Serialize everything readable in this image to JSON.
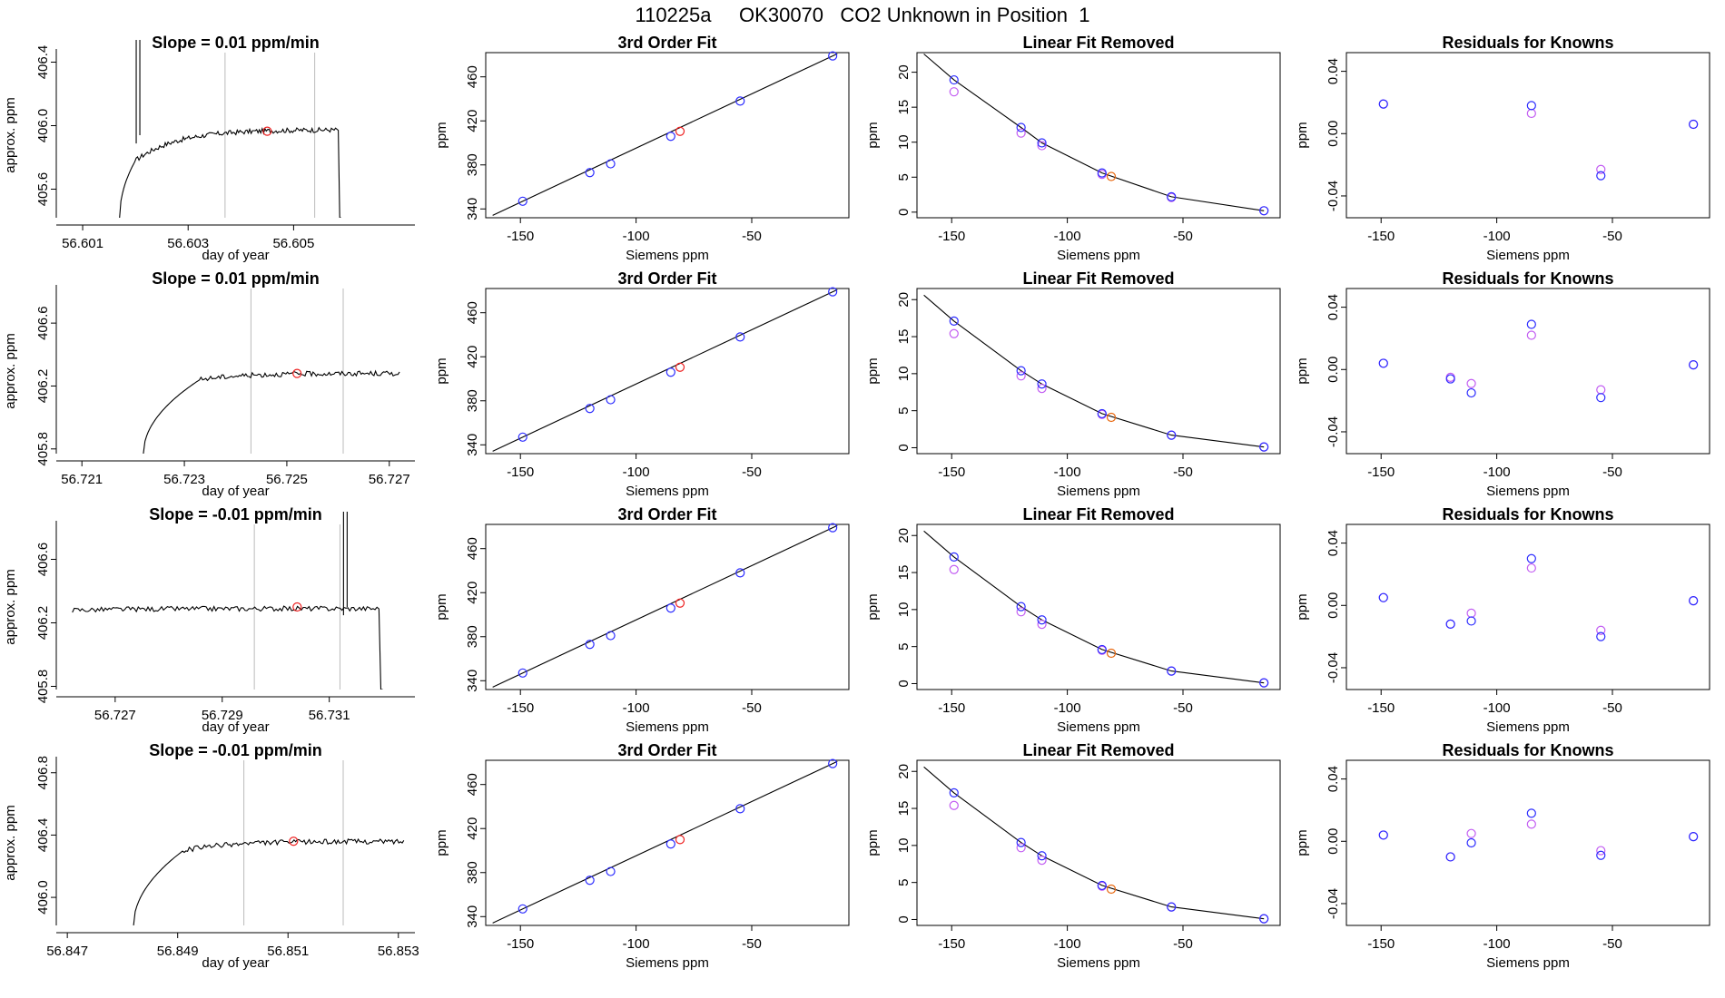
{
  "title": "110225a     OK30070   CO2 Unknown in Position  1",
  "colors": {
    "blue": "#2b2bff",
    "violet": "#c25cf2",
    "red": "#ee2222",
    "orange": "#e8670e",
    "line": "#000000",
    "guide": "#bbbbbb"
  },
  "chart_data": [
    {
      "type": "line",
      "title": "Slope =  0.01  ppm/min",
      "xlabel": "day of year",
      "ylabel": "approx. ppm",
      "xlim": [
        56.6005,
        56.6073
      ],
      "ylim": [
        405.42,
        406.46
      ],
      "x_ticks": [
        "56.601",
        "56.603",
        "56.605"
      ],
      "x_tick_values": [
        56.601,
        56.603,
        56.605
      ],
      "y_ticks": [
        "405.6",
        "406.0",
        "406.4"
      ],
      "y_tick_values": [
        405.6,
        406.0,
        406.4
      ],
      "guide_lines": [
        56.6037,
        56.6054
      ],
      "marker": {
        "x": 56.6045,
        "y": 405.965
      },
      "trace": {
        "x_start": 56.6017,
        "x_end": 56.6059,
        "rise_end": 56.602,
        "plateau_start_value": 405.78,
        "plateau_value": 405.975,
        "spike_x": 56.60205,
        "drop_x": 56.60585,
        "start_value": 405.42,
        "end_drop_value": 405.42
      }
    },
    {
      "type": "scatter",
      "title": "3rd Order Fit",
      "xlabel": "Siemens ppm",
      "ylabel": "ppm",
      "xlim": [
        -165,
        -8
      ],
      "ylim": [
        332,
        482
      ],
      "x_ticks": [
        "-150",
        "-100",
        "-50"
      ],
      "x_tick_values": [
        -150,
        -100,
        -50
      ],
      "y_ticks": [
        "340",
        "380",
        "420",
        "460"
      ],
      "y_tick_values": [
        340,
        380,
        420,
        460
      ],
      "knowns_x": [
        -149,
        -120,
        -111,
        -85,
        -55,
        -15
      ],
      "knowns_y": [
        347,
        373,
        381,
        406,
        438,
        479
      ],
      "unknown": {
        "x": -81,
        "y": 410.5
      },
      "fit_range": [
        -162,
        -13
      ]
    },
    {
      "type": "scatter",
      "title": "Linear Fit Removed",
      "xlabel": "Siemens ppm",
      "ylabel": "ppm",
      "xlim": [
        -165,
        -8
      ],
      "ylim": [
        -0.8,
        22.8
      ],
      "x_ticks": [
        "-150",
        "-100",
        "-50"
      ],
      "x_tick_values": [
        -150,
        -100,
        -50
      ],
      "y_ticks": [
        "0",
        "5",
        "10",
        "15",
        "20"
      ],
      "y_tick_values": [
        0,
        5,
        10,
        15,
        20
      ],
      "knowns_x": [
        -149,
        -120,
        -111,
        -85,
        -55,
        -15
      ],
      "knowns_y": [
        18.9,
        12.1,
        9.9,
        5.6,
        2.2,
        0.2
      ],
      "knowns_y_alt": [
        17.2,
        11.3,
        9.5,
        5.4,
        2.1,
        0.2
      ],
      "unknown": {
        "x": -81,
        "y": 5.1
      },
      "curve_x": [
        -162,
        -149,
        -120,
        -111,
        -85,
        -55,
        -15
      ],
      "curve_y": [
        22.6,
        18.9,
        12.1,
        9.9,
        5.6,
        2.2,
        0.2
      ]
    },
    {
      "type": "scatter",
      "title": "Residuals for Knowns",
      "xlabel": "Siemens ppm",
      "ylabel": "ppm",
      "xlim": [
        -165,
        -8
      ],
      "ylim": [
        -0.054,
        0.052
      ],
      "x_ticks": [
        "-150",
        "-100",
        "-50"
      ],
      "x_tick_values": [
        -150,
        -100,
        -50
      ],
      "y_ticks": [
        "-0.04",
        "0.00",
        "0.04"
      ],
      "y_tick_values": [
        -0.04,
        0.0,
        0.04
      ],
      "knowns_x": [
        -149,
        -85,
        -55,
        -15
      ],
      "knowns_y": [
        0.019,
        0.018,
        -0.027,
        0.006
      ],
      "knowns_y_alt": [
        0.019,
        0.013,
        -0.023,
        0.006
      ]
    },
    {
      "type": "line",
      "title": "Slope =  0.01  ppm/min",
      "xlabel": "day of year",
      "ylabel": "approx. ppm",
      "xlim": [
        56.7205,
        56.7275
      ],
      "ylim": [
        405.77,
        406.82
      ],
      "x_ticks": [
        "56.721",
        "56.723",
        "56.725",
        "56.727"
      ],
      "x_tick_values": [
        56.721,
        56.723,
        56.725,
        56.727
      ],
      "y_ticks": [
        "405.8",
        "406.2",
        "406.6"
      ],
      "y_tick_values": [
        405.8,
        406.2,
        406.6
      ],
      "guide_lines": [
        56.7243,
        56.7261
      ],
      "marker": {
        "x": 56.7252,
        "y": 406.28
      },
      "trace": {
        "x_start": 56.7222,
        "x_end": 56.7272,
        "rise_end": 56.7233,
        "plateau_start_value": 406.24,
        "plateau_value": 406.28,
        "spike_x": null,
        "drop_x": null,
        "start_value": 405.77,
        "end_drop_value": null
      }
    },
    {
      "type": "scatter",
      "title": "3rd Order Fit",
      "xlabel": "Siemens ppm",
      "ylabel": "ppm",
      "xlim": [
        -165,
        -8
      ],
      "ylim": [
        332,
        482
      ],
      "x_ticks": [
        "-150",
        "-100",
        "-50"
      ],
      "x_tick_values": [
        -150,
        -100,
        -50
      ],
      "y_ticks": [
        "340",
        "380",
        "420",
        "460"
      ],
      "y_tick_values": [
        340,
        380,
        420,
        460
      ],
      "knowns_x": [
        -149,
        -120,
        -111,
        -85,
        -55,
        -15
      ],
      "knowns_y": [
        347,
        373,
        381,
        406,
        438,
        479
      ],
      "unknown": {
        "x": -81,
        "y": 410.5
      },
      "fit_range": [
        -162,
        -13
      ]
    },
    {
      "type": "scatter",
      "title": "Linear Fit Removed",
      "xlabel": "Siemens ppm",
      "ylabel": "ppm",
      "xlim": [
        -165,
        -8
      ],
      "ylim": [
        -0.8,
        21.5
      ],
      "x_ticks": [
        "-150",
        "-100",
        "-50"
      ],
      "x_tick_values": [
        -150,
        -100,
        -50
      ],
      "y_ticks": [
        "0",
        "5",
        "10",
        "15",
        "20"
      ],
      "y_tick_values": [
        0,
        5,
        10,
        15,
        20
      ],
      "knowns_x": [
        -149,
        -120,
        -111,
        -85,
        -55,
        -15
      ],
      "knowns_y": [
        17.1,
        10.4,
        8.6,
        4.6,
        1.7,
        0.1
      ],
      "knowns_y_alt": [
        15.4,
        9.7,
        8.0,
        4.5,
        1.7,
        0.1
      ],
      "unknown": {
        "x": -81,
        "y": 4.1
      },
      "curve_x": [
        -162,
        -149,
        -120,
        -111,
        -85,
        -55,
        -15
      ],
      "curve_y": [
        20.6,
        17.1,
        10.4,
        8.6,
        4.6,
        1.7,
        0.1
      ]
    },
    {
      "type": "scatter",
      "title": "Residuals for Knowns",
      "xlabel": "Siemens ppm",
      "ylabel": "ppm",
      "xlim": [
        -165,
        -8
      ],
      "ylim": [
        -0.054,
        0.052
      ],
      "x_ticks": [
        "-150",
        "-100",
        "-50"
      ],
      "x_tick_values": [
        -150,
        -100,
        -50
      ],
      "y_ticks": [
        "-0.04",
        "0.00",
        "0.04"
      ],
      "y_tick_values": [
        -0.04,
        0.0,
        0.04
      ],
      "knowns_x": [
        -149,
        -120,
        -111,
        -85,
        -55,
        -15
      ],
      "knowns_y": [
        0.004,
        -0.006,
        -0.015,
        0.029,
        -0.018,
        0.003
      ],
      "knowns_y_alt": [
        0.004,
        -0.005,
        -0.009,
        0.022,
        -0.013,
        0.003
      ]
    },
    {
      "type": "line",
      "title": "Slope =  -0.01  ppm/min",
      "xlabel": "day of year",
      "ylabel": "approx. ppm",
      "xlim": [
        56.7259,
        56.7326
      ],
      "ylim": [
        405.78,
        406.82
      ],
      "x_ticks": [
        "56.727",
        "56.729",
        "56.731"
      ],
      "x_tick_values": [
        56.727,
        56.729,
        56.731
      ],
      "y_ticks": [
        "405.8",
        "406.2",
        "406.6"
      ],
      "y_tick_values": [
        405.8,
        406.2,
        406.6
      ],
      "guide_lines": [
        56.7296,
        56.7312
      ],
      "marker": {
        "x": 56.7304,
        "y": 406.3
      },
      "trace": {
        "x_start": 56.7262,
        "x_end": 56.732,
        "rise_end": null,
        "plateau_start_value": 406.28,
        "plateau_value": 406.29,
        "spike_x": 56.7313,
        "drop_x": 56.73195,
        "start_value": 406.27,
        "end_drop_value": 405.78
      }
    },
    {
      "type": "scatter",
      "title": "3rd Order Fit",
      "xlabel": "Siemens ppm",
      "ylabel": "ppm",
      "xlim": [
        -165,
        -8
      ],
      "ylim": [
        332,
        482
      ],
      "x_ticks": [
        "-150",
        "-100",
        "-50"
      ],
      "x_tick_values": [
        -150,
        -100,
        -50
      ],
      "y_ticks": [
        "340",
        "380",
        "420",
        "460"
      ],
      "y_tick_values": [
        340,
        380,
        420,
        460
      ],
      "knowns_x": [
        -149,
        -120,
        -111,
        -85,
        -55,
        -15
      ],
      "knowns_y": [
        347,
        373,
        381,
        406,
        438,
        479
      ],
      "unknown": {
        "x": -81,
        "y": 410.5
      },
      "fit_range": [
        -162,
        -13
      ]
    },
    {
      "type": "scatter",
      "title": "Linear Fit Removed",
      "xlabel": "Siemens ppm",
      "ylabel": "ppm",
      "xlim": [
        -165,
        -8
      ],
      "ylim": [
        -0.8,
        21.5
      ],
      "x_ticks": [
        "-150",
        "-100",
        "-50"
      ],
      "x_tick_values": [
        -150,
        -100,
        -50
      ],
      "y_ticks": [
        "0",
        "5",
        "10",
        "15",
        "20"
      ],
      "y_tick_values": [
        0,
        5,
        10,
        15,
        20
      ],
      "knowns_x": [
        -149,
        -120,
        -111,
        -85,
        -55,
        -15
      ],
      "knowns_y": [
        17.1,
        10.4,
        8.6,
        4.6,
        1.7,
        0.1
      ],
      "knowns_y_alt": [
        15.4,
        9.7,
        8.0,
        4.5,
        1.7,
        0.1
      ],
      "unknown": {
        "x": -81,
        "y": 4.1
      },
      "curve_x": [
        -162,
        -149,
        -120,
        -111,
        -85,
        -55,
        -15
      ],
      "curve_y": [
        20.6,
        17.1,
        10.4,
        8.6,
        4.6,
        1.7,
        0.1
      ]
    },
    {
      "type": "scatter",
      "title": "Residuals for Knowns",
      "xlabel": "Siemens ppm",
      "ylabel": "ppm",
      "xlim": [
        -165,
        -8
      ],
      "ylim": [
        -0.054,
        0.052
      ],
      "x_ticks": [
        "-150",
        "-100",
        "-50"
      ],
      "x_tick_values": [
        -150,
        -100,
        -50
      ],
      "y_ticks": [
        "-0.04",
        "0.00",
        "0.04"
      ],
      "y_tick_values": [
        -0.04,
        0.0,
        0.04
      ],
      "knowns_x": [
        -149,
        -120,
        -111,
        -85,
        -55,
        -15
      ],
      "knowns_y": [
        0.005,
        -0.012,
        -0.01,
        0.03,
        -0.02,
        0.003
      ],
      "knowns_y_alt": [
        0.005,
        -0.012,
        -0.005,
        0.024,
        -0.016,
        0.003
      ]
    },
    {
      "type": "line",
      "title": "Slope =  -0.01  ppm/min",
      "xlabel": "day of year",
      "ylabel": "approx. ppm",
      "xlim": [
        56.8468,
        56.8533
      ],
      "ylim": [
        405.82,
        406.88
      ],
      "x_ticks": [
        "56.847",
        "56.849",
        "56.851",
        "56.853"
      ],
      "x_tick_values": [
        56.847,
        56.849,
        56.851,
        56.853
      ],
      "y_ticks": [
        "406.0",
        "406.4",
        "406.8"
      ],
      "y_tick_values": [
        406.0,
        406.4,
        406.8
      ],
      "guide_lines": [
        56.8502,
        56.852
      ],
      "marker": {
        "x": 56.8511,
        "y": 406.36
      },
      "trace": {
        "x_start": 56.8482,
        "x_end": 56.8531,
        "rise_end": 56.8491,
        "plateau_start_value": 406.3,
        "plateau_value": 406.36,
        "spike_x": null,
        "drop_x": null,
        "start_value": 405.82,
        "end_drop_value": null
      }
    },
    {
      "type": "scatter",
      "title": "3rd Order Fit",
      "xlabel": "Siemens ppm",
      "ylabel": "ppm",
      "xlim": [
        -165,
        -8
      ],
      "ylim": [
        332,
        482
      ],
      "x_ticks": [
        "-150",
        "-100",
        "-50"
      ],
      "x_tick_values": [
        -150,
        -100,
        -50
      ],
      "y_ticks": [
        "340",
        "380",
        "420",
        "460"
      ],
      "y_tick_values": [
        340,
        380,
        420,
        460
      ],
      "knowns_x": [
        -149,
        -120,
        -111,
        -85,
        -55,
        -15
      ],
      "knowns_y": [
        347,
        373,
        381,
        406,
        438,
        479
      ],
      "unknown": {
        "x": -81,
        "y": 410
      },
      "fit_range": [
        -162,
        -13
      ]
    },
    {
      "type": "scatter",
      "title": "Linear Fit Removed",
      "xlabel": "Siemens ppm",
      "ylabel": "ppm",
      "xlim": [
        -165,
        -8
      ],
      "ylim": [
        -0.8,
        21.5
      ],
      "x_ticks": [
        "-150",
        "-100",
        "-50"
      ],
      "x_tick_values": [
        -150,
        -100,
        -50
      ],
      "y_ticks": [
        "0",
        "5",
        "10",
        "15",
        "20"
      ],
      "y_tick_values": [
        0,
        5,
        10,
        15,
        20
      ],
      "knowns_x": [
        -149,
        -120,
        -111,
        -85,
        -55,
        -15
      ],
      "knowns_y": [
        17.1,
        10.4,
        8.6,
        4.6,
        1.7,
        0.1
      ],
      "knowns_y_alt": [
        15.4,
        9.7,
        8.0,
        4.5,
        1.7,
        0.1
      ],
      "unknown": {
        "x": -81,
        "y": 4.1
      },
      "curve_x": [
        -162,
        -149,
        -120,
        -111,
        -85,
        -55,
        -15
      ],
      "curve_y": [
        20.6,
        17.1,
        10.4,
        8.6,
        4.6,
        1.7,
        0.1
      ]
    },
    {
      "type": "scatter",
      "title": "Residuals for Knowns",
      "xlabel": "Siemens ppm",
      "ylabel": "ppm",
      "xlim": [
        -165,
        -8
      ],
      "ylim": [
        -0.054,
        0.052
      ],
      "x_ticks": [
        "-150",
        "-100",
        "-50"
      ],
      "x_tick_values": [
        -150,
        -100,
        -50
      ],
      "y_ticks": [
        "-0.04",
        "0.00",
        "0.04"
      ],
      "y_tick_values": [
        -0.04,
        0.0,
        0.04
      ],
      "knowns_x": [
        -149,
        -120,
        -111,
        -85,
        -55,
        -15
      ],
      "knowns_y": [
        0.004,
        -0.01,
        -0.001,
        0.018,
        -0.009,
        0.003
      ],
      "knowns_y_alt": [
        0.004,
        -0.01,
        0.005,
        0.011,
        -0.006,
        0.003
      ]
    }
  ]
}
